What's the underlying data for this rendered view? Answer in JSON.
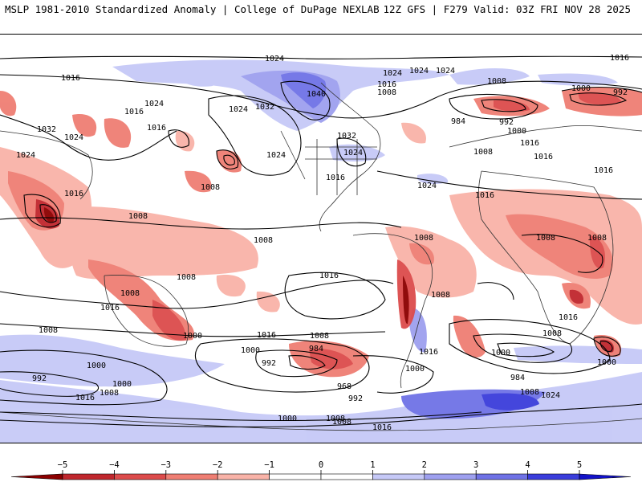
{
  "header": {
    "left_title": "MSLP 1981-2010 Standardized Anomaly | College of DuPage NEXLAB",
    "right_title": "12Z GFS | F279 Valid: 03Z FRI NOV 28 2025"
  },
  "isobar_labels": [
    {
      "id": "lab-1024-npac",
      "text": "1024"
    },
    {
      "id": "lab-1016-nwpac",
      "text": "1016"
    },
    {
      "id": "lab-1024-japan",
      "text": "1024"
    },
    {
      "id": "lab-1016-japan",
      "text": "1016"
    },
    {
      "id": "lab-1032-asia",
      "text": "1032"
    },
    {
      "id": "lab-1024-asia",
      "text": "1024"
    },
    {
      "id": "lab-1024-india",
      "text": "1024"
    },
    {
      "id": "lab-1016-india",
      "text": "1016"
    },
    {
      "id": "lab-1016-pac1",
      "text": "1016"
    },
    {
      "id": "lab-1024-pac2",
      "text": "1024"
    },
    {
      "id": "lab-1032-pac",
      "text": "1032"
    },
    {
      "id": "lab-1040-alaska",
      "text": "1040"
    },
    {
      "id": "lab-1024-pac3",
      "text": "1024"
    },
    {
      "id": "lab-1008-pac",
      "text": "1008"
    },
    {
      "id": "lab-1032-canada",
      "text": "1032"
    },
    {
      "id": "lab-1024-us",
      "text": "1024"
    },
    {
      "id": "lab-1016-us",
      "text": "1016"
    },
    {
      "id": "lab-1024-hudson",
      "text": "1024"
    },
    {
      "id": "lab-1016-greenland",
      "text": "1016"
    },
    {
      "id": "lab-1008-greenland",
      "text": "1008"
    },
    {
      "id": "lab-1024-natl1",
      "text": "1024"
    },
    {
      "id": "lab-1008-natl",
      "text": "1008"
    },
    {
      "id": "lab-1024-natl2",
      "text": "1024"
    },
    {
      "id": "lab-984-natl",
      "text": "984"
    },
    {
      "id": "lab-992-natl",
      "text": "992"
    },
    {
      "id": "lab-1000-natl",
      "text": "1000"
    },
    {
      "id": "lab-1008-europe",
      "text": "1008"
    },
    {
      "id": "lab-1000-europe",
      "text": "1000"
    },
    {
      "id": "lab-992-europe",
      "text": "992"
    },
    {
      "id": "lab-1016-europe",
      "text": "1016"
    },
    {
      "id": "lab-1016-russia",
      "text": "1016"
    },
    {
      "id": "lab-1016-arctic",
      "text": "1016"
    },
    {
      "id": "lab-1016-med",
      "text": "1016"
    },
    {
      "id": "lab-1024-atl",
      "text": "1024"
    },
    {
      "id": "lab-1016-atl",
      "text": "1016"
    },
    {
      "id": "lab-1008-tpac",
      "text": "1008"
    },
    {
      "id": "lab-1008-pac-east",
      "text": "1008"
    },
    {
      "id": "lab-1008-spac",
      "text": "1008"
    },
    {
      "id": "lab-1016-spac",
      "text": "1016"
    },
    {
      "id": "lab-1008-aus",
      "text": "1008"
    },
    {
      "id": "lab-1016-aus",
      "text": "1016"
    },
    {
      "id": "lab-1000-aus",
      "text": "1000"
    },
    {
      "id": "lab-1008-samer1",
      "text": "1008"
    },
    {
      "id": "lab-1008-samer2",
      "text": "1008"
    },
    {
      "id": "lab-1008-africa1",
      "text": "1008"
    },
    {
      "id": "lab-1008-africa2",
      "text": "1008"
    },
    {
      "id": "lab-1016-safrica",
      "text": "1016"
    },
    {
      "id": "lab-1008-satl",
      "text": "1008"
    },
    {
      "id": "lab-1016-sam",
      "text": "1016"
    },
    {
      "id": "lab-1016-so1",
      "text": "1016"
    },
    {
      "id": "lab-1008-so1",
      "text": "1008"
    },
    {
      "id": "lab-1000-so1",
      "text": "1000"
    },
    {
      "id": "lab-992-so1",
      "text": "992"
    },
    {
      "id": "lab-984-so",
      "text": "984"
    },
    {
      "id": "lab-968-so",
      "text": "968"
    },
    {
      "id": "lab-992-so2",
      "text": "992"
    },
    {
      "id": "lab-1000-so2",
      "text": "1000"
    },
    {
      "id": "lab-1008-so2",
      "text": "1008"
    },
    {
      "id": "lab-1000-sio",
      "text": "1000"
    },
    {
      "id": "lab-984-sio",
      "text": "984"
    },
    {
      "id": "lab-1000-sio2",
      "text": "1000"
    },
    {
      "id": "lab-1008-ant",
      "text": "1008"
    },
    {
      "id": "lab-1024-ant",
      "text": "1024"
    },
    {
      "id": "lab-1008-so-w",
      "text": "1008"
    },
    {
      "id": "lab-1000-so-w",
      "text": "1000"
    },
    {
      "id": "lab-992-so-w",
      "text": "992"
    },
    {
      "id": "lab-1008-so-w2",
      "text": "1008"
    },
    {
      "id": "lab-1016-so-w",
      "text": "1016"
    },
    {
      "id": "lab-1000-so-w2",
      "text": "1000"
    },
    {
      "id": "lab-1000-ant2",
      "text": "1000"
    },
    {
      "id": "lab-1008-ant2",
      "text": "1008"
    },
    {
      "id": "lab-1016-ant",
      "text": "1016"
    }
  ],
  "colorbar": {
    "ticks": [
      "−5",
      "−4",
      "−3",
      "−2",
      "−1",
      "0",
      "1",
      "2",
      "3",
      "4",
      "5"
    ],
    "colors": [
      "#8b0000",
      "#c0272d",
      "#dc4b4b",
      "#ef7e73",
      "#f9b3a8",
      "#ffffff",
      "#ffffff",
      "#c6c9f7",
      "#9ea0ef",
      "#6f72e6",
      "#3a3ddb",
      "#1212c8"
    ]
  }
}
